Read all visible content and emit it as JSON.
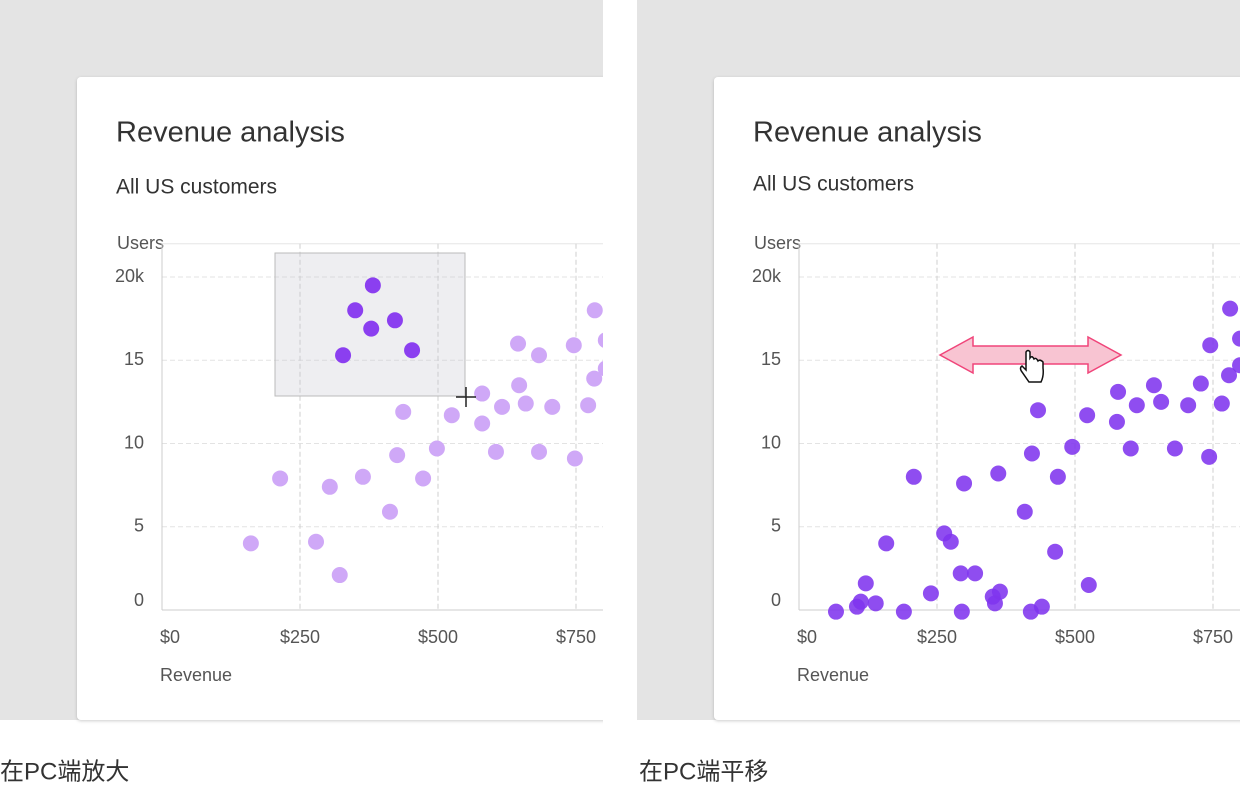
{
  "chart_data": [
    {
      "type": "scatter",
      "title": "Revenue analysis",
      "subtitle": "All US customers",
      "y_label": "Users",
      "x_label": "Revenue",
      "xlim": [
        0,
        800
      ],
      "ylim": [
        0,
        22
      ],
      "xticks": [
        {
          "value": 0,
          "label": "$0"
        },
        {
          "value": 250,
          "label": "$250"
        },
        {
          "value": 500,
          "label": "$500"
        },
        {
          "value": 750,
          "label": "$750"
        }
      ],
      "yticks": [
        0,
        5,
        10,
        15,
        {
          "value": 20,
          "label": "20k"
        }
      ],
      "grid": true,
      "series": [
        {
          "color": "#cfa8f7",
          "x": [
            161,
            214,
            279,
            304,
            322,
            364,
            413,
            426,
            437,
            473,
            498,
            525,
            580,
            580,
            616,
            605,
            645,
            647,
            659,
            683,
            707,
            683,
            746,
            748,
            772,
            783,
            784,
            804,
            804
          ],
          "values": [
            4.0,
            7.9,
            4.1,
            7.4,
            2.1,
            8.0,
            5.9,
            9.3,
            11.9,
            7.9,
            9.7,
            11.7,
            13.0,
            11.2,
            12.2,
            9.5,
            16.0,
            13.5,
            12.4,
            15.3,
            12.2,
            9.5,
            15.9,
            9.1,
            12.3,
            13.9,
            18.0,
            16.2,
            14.5
          ]
        },
        {
          "color": "#8b3ff0",
          "x": [
            382,
            350,
            379,
            422,
            328,
            453
          ],
          "values": [
            19.5,
            18.0,
            16.9,
            17.4,
            15.3,
            15.6
          ]
        }
      ]
    },
    {
      "type": "scatter",
      "title": "Revenue analysis",
      "subtitle": "All US customers",
      "y_label": "Users",
      "x_label": "Revenue",
      "xlim": [
        0,
        800
      ],
      "ylim": [
        0,
        22
      ],
      "xticks": [
        {
          "value": 0,
          "label": "$0"
        },
        {
          "value": 250,
          "label": "$250"
        },
        {
          "value": 500,
          "label": "$500"
        },
        {
          "value": 750,
          "label": "$750"
        }
      ],
      "yticks": [
        0,
        5,
        10,
        15,
        {
          "value": 20,
          "label": "20k"
        }
      ],
      "grid": true,
      "series": [
        {
          "color": "#8034ee",
          "x": [
            67,
            105,
            112,
            121,
            139,
            158,
            190,
            208,
            239,
            263,
            275,
            293,
            295,
            299,
            319,
            351,
            355,
            361,
            364,
            409,
            420,
            422,
            433,
            440,
            464,
            469,
            495,
            522,
            525,
            576,
            578,
            601,
            612,
            643,
            656,
            681,
            705,
            728,
            743,
            745,
            766,
            779,
            781,
            799,
            799
          ],
          "values": [
            -0.1,
            0.2,
            0.5,
            1.6,
            0.4,
            4.0,
            -0.1,
            8.0,
            1.0,
            4.6,
            4.1,
            2.2,
            -0.1,
            7.6,
            2.2,
            0.8,
            0.4,
            8.2,
            1.1,
            5.9,
            -0.1,
            9.4,
            12.0,
            0.2,
            3.5,
            8.0,
            9.8,
            11.7,
            1.5,
            11.3,
            13.1,
            9.7,
            12.3,
            13.5,
            12.5,
            9.7,
            12.3,
            13.6,
            9.2,
            15.9,
            12.4,
            14.1,
            18.1,
            16.3,
            14.7
          ]
        }
      ]
    }
  ],
  "captions": [
    "在PC端放大",
    "在PC端平移"
  ]
}
